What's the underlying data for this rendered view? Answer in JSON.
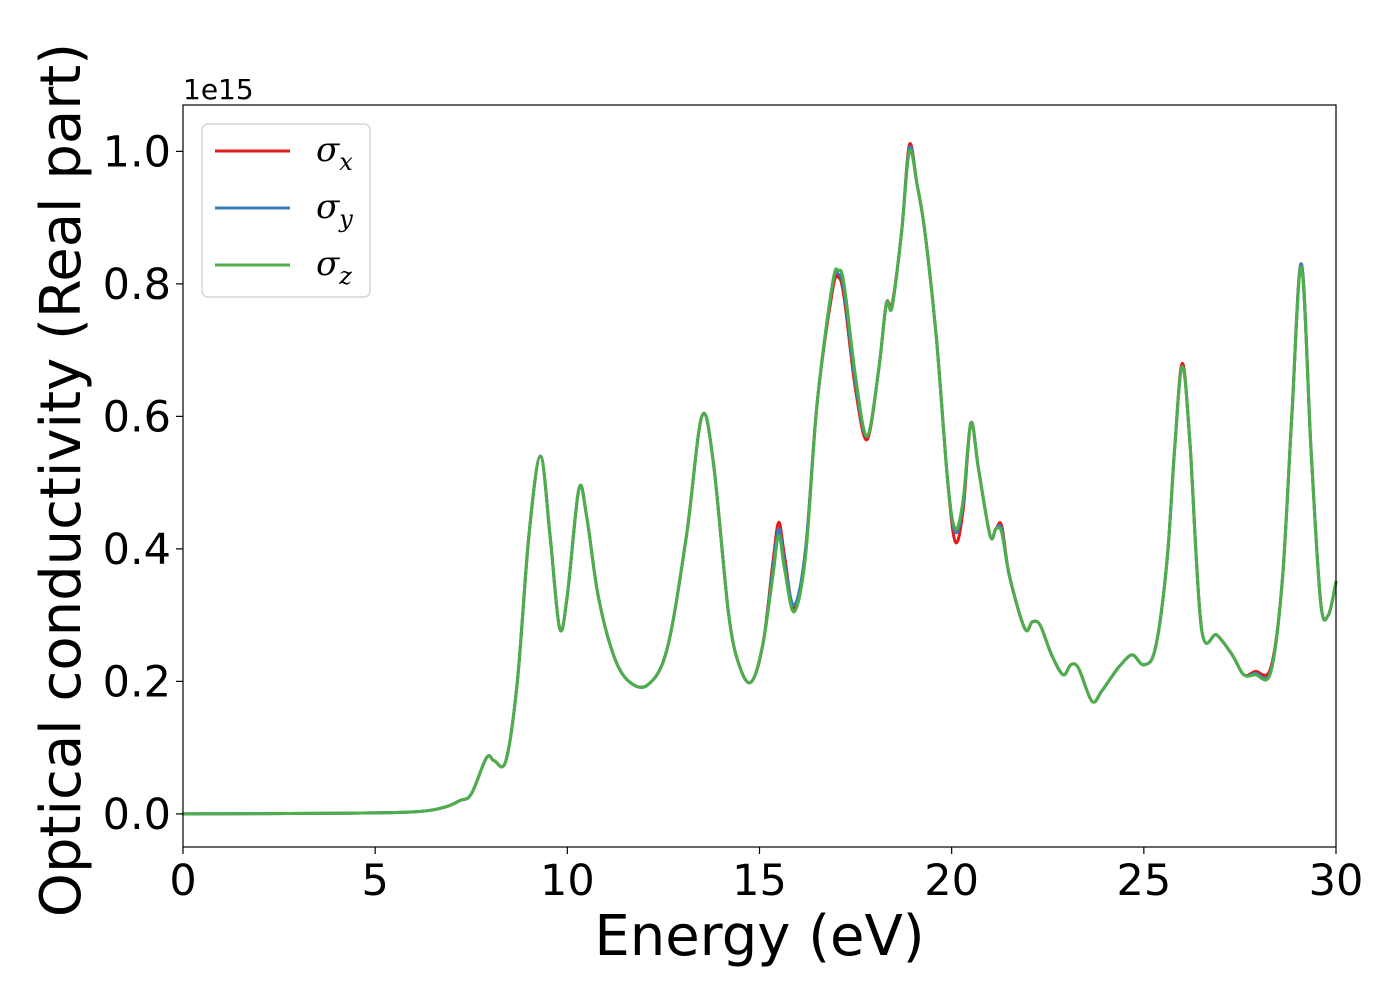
{
  "chart_data": {
    "type": "line",
    "title": "",
    "xlabel": "Energy (eV)",
    "ylabel": "Optical conductivity (Real part)",
    "y_offset_label": "1e15",
    "xlim": [
      0,
      30
    ],
    "ylim": [
      -0.05,
      1.07
    ],
    "x_ticks": [
      0,
      5,
      10,
      15,
      20,
      25,
      30
    ],
    "x_tick_labels": [
      "0",
      "5",
      "10",
      "15",
      "20",
      "25",
      "30"
    ],
    "y_ticks": [
      0.0,
      0.2,
      0.4,
      0.6,
      0.8,
      1.0
    ],
    "y_tick_labels": [
      "0.0",
      "0.2",
      "0.4",
      "0.6",
      "0.8",
      "1.0"
    ],
    "grid": false,
    "legend_position": "top-left",
    "series": [
      {
        "name": "σx",
        "symbol": "σ",
        "subscript": "x",
        "color": "#e41a1c",
        "x": [
          0,
          4,
          6,
          6.8,
          7.2,
          7.5,
          7.9,
          8.1,
          8.4,
          8.7,
          9.0,
          9.3,
          9.55,
          9.8,
          10.0,
          10.3,
          10.5,
          10.8,
          11.2,
          11.6,
          12.1,
          12.6,
          13.1,
          13.5,
          13.8,
          14.2,
          14.5,
          14.8,
          15.1,
          15.35,
          15.5,
          15.65,
          15.9,
          16.2,
          16.5,
          16.9,
          17.05,
          17.2,
          17.5,
          17.8,
          18.1,
          18.3,
          18.45,
          18.7,
          18.9,
          19.1,
          19.3,
          19.6,
          19.9,
          20.1,
          20.3,
          20.5,
          20.7,
          21.0,
          21.15,
          21.3,
          21.5,
          21.9,
          22.1,
          22.3,
          22.6,
          22.9,
          23.1,
          23.3,
          23.65,
          23.9,
          24.2,
          24.4,
          24.7,
          25.0,
          25.3,
          25.6,
          25.8,
          26.0,
          26.2,
          26.5,
          26.9,
          27.3,
          27.6,
          27.9,
          28.3,
          28.6,
          28.85,
          29.1,
          29.35,
          29.6,
          29.8,
          30.0
        ],
        "values": [
          0,
          0.001,
          0.003,
          0.01,
          0.02,
          0.03,
          0.085,
          0.08,
          0.08,
          0.2,
          0.42,
          0.54,
          0.42,
          0.28,
          0.33,
          0.49,
          0.45,
          0.33,
          0.24,
          0.2,
          0.195,
          0.25,
          0.42,
          0.6,
          0.53,
          0.3,
          0.22,
          0.2,
          0.26,
          0.38,
          0.44,
          0.39,
          0.31,
          0.4,
          0.62,
          0.79,
          0.81,
          0.78,
          0.64,
          0.565,
          0.67,
          0.77,
          0.77,
          0.88,
          1.01,
          0.95,
          0.88,
          0.72,
          0.5,
          0.41,
          0.46,
          0.59,
          0.52,
          0.42,
          0.43,
          0.435,
          0.36,
          0.28,
          0.29,
          0.285,
          0.24,
          0.21,
          0.225,
          0.22,
          0.17,
          0.185,
          0.21,
          0.225,
          0.24,
          0.225,
          0.25,
          0.38,
          0.55,
          0.68,
          0.56,
          0.28,
          0.27,
          0.24,
          0.21,
          0.215,
          0.22,
          0.35,
          0.6,
          0.83,
          0.55,
          0.32,
          0.3,
          0.35
        ]
      },
      {
        "name": "σy",
        "symbol": "σ",
        "subscript": "y",
        "color": "#377eb8",
        "x": [
          0,
          4,
          6,
          6.8,
          7.2,
          7.5,
          7.9,
          8.1,
          8.4,
          8.7,
          9.0,
          9.3,
          9.55,
          9.8,
          10.0,
          10.3,
          10.5,
          10.8,
          11.2,
          11.6,
          12.1,
          12.6,
          13.1,
          13.5,
          13.8,
          14.2,
          14.5,
          14.8,
          15.1,
          15.35,
          15.5,
          15.65,
          15.9,
          16.2,
          16.5,
          16.9,
          17.05,
          17.2,
          17.5,
          17.8,
          18.1,
          18.3,
          18.45,
          18.7,
          18.9,
          19.1,
          19.3,
          19.6,
          19.9,
          20.1,
          20.3,
          20.5,
          20.7,
          21.0,
          21.15,
          21.3,
          21.5,
          21.9,
          22.1,
          22.3,
          22.6,
          22.9,
          23.1,
          23.3,
          23.65,
          23.9,
          24.2,
          24.4,
          24.7,
          25.0,
          25.3,
          25.6,
          25.8,
          26.0,
          26.2,
          26.5,
          26.9,
          27.3,
          27.6,
          27.9,
          28.3,
          28.6,
          28.85,
          29.1,
          29.35,
          29.6,
          29.8,
          30.0
        ],
        "values": [
          0,
          0.001,
          0.003,
          0.01,
          0.02,
          0.03,
          0.085,
          0.08,
          0.08,
          0.2,
          0.42,
          0.54,
          0.42,
          0.28,
          0.33,
          0.49,
          0.45,
          0.33,
          0.24,
          0.2,
          0.195,
          0.25,
          0.42,
          0.6,
          0.53,
          0.3,
          0.22,
          0.2,
          0.26,
          0.37,
          0.43,
          0.38,
          0.315,
          0.4,
          0.62,
          0.8,
          0.815,
          0.79,
          0.65,
          0.57,
          0.67,
          0.77,
          0.765,
          0.88,
          1.005,
          0.95,
          0.88,
          0.72,
          0.5,
          0.425,
          0.47,
          0.59,
          0.52,
          0.42,
          0.43,
          0.43,
          0.36,
          0.28,
          0.29,
          0.285,
          0.24,
          0.21,
          0.225,
          0.22,
          0.17,
          0.185,
          0.21,
          0.225,
          0.24,
          0.225,
          0.25,
          0.38,
          0.55,
          0.675,
          0.56,
          0.28,
          0.27,
          0.24,
          0.21,
          0.212,
          0.215,
          0.35,
          0.6,
          0.83,
          0.55,
          0.32,
          0.3,
          0.35
        ]
      },
      {
        "name": "σz",
        "symbol": "σ",
        "subscript": "z",
        "color": "#4daf4a",
        "x": [
          0,
          4,
          6,
          6.8,
          7.2,
          7.5,
          7.9,
          8.1,
          8.4,
          8.7,
          9.0,
          9.3,
          9.55,
          9.8,
          10.0,
          10.3,
          10.5,
          10.8,
          11.2,
          11.6,
          12.1,
          12.6,
          13.1,
          13.5,
          13.8,
          14.2,
          14.5,
          14.8,
          15.1,
          15.35,
          15.5,
          15.65,
          15.9,
          16.2,
          16.5,
          16.9,
          17.05,
          17.2,
          17.5,
          17.8,
          18.1,
          18.3,
          18.45,
          18.7,
          18.9,
          19.1,
          19.3,
          19.6,
          19.9,
          20.1,
          20.3,
          20.5,
          20.7,
          21.0,
          21.15,
          21.3,
          21.5,
          21.9,
          22.1,
          22.3,
          22.6,
          22.9,
          23.1,
          23.3,
          23.65,
          23.9,
          24.2,
          24.4,
          24.7,
          25.0,
          25.3,
          25.6,
          25.8,
          26.0,
          26.2,
          26.5,
          26.9,
          27.3,
          27.6,
          27.9,
          28.3,
          28.6,
          28.85,
          29.1,
          29.35,
          29.6,
          29.8,
          30.0
        ],
        "values": [
          0,
          0.001,
          0.003,
          0.01,
          0.02,
          0.03,
          0.085,
          0.08,
          0.08,
          0.2,
          0.42,
          0.54,
          0.42,
          0.28,
          0.33,
          0.49,
          0.45,
          0.33,
          0.24,
          0.2,
          0.195,
          0.25,
          0.42,
          0.6,
          0.53,
          0.3,
          0.22,
          0.2,
          0.26,
          0.36,
          0.42,
          0.37,
          0.305,
          0.39,
          0.62,
          0.8,
          0.82,
          0.8,
          0.66,
          0.57,
          0.67,
          0.77,
          0.765,
          0.88,
          1.0,
          0.95,
          0.88,
          0.72,
          0.5,
          0.43,
          0.475,
          0.59,
          0.52,
          0.42,
          0.43,
          0.425,
          0.36,
          0.28,
          0.29,
          0.285,
          0.24,
          0.21,
          0.225,
          0.22,
          0.17,
          0.185,
          0.21,
          0.225,
          0.24,
          0.225,
          0.25,
          0.38,
          0.55,
          0.675,
          0.56,
          0.28,
          0.27,
          0.24,
          0.21,
          0.21,
          0.213,
          0.35,
          0.6,
          0.825,
          0.55,
          0.32,
          0.3,
          0.35
        ]
      }
    ]
  }
}
